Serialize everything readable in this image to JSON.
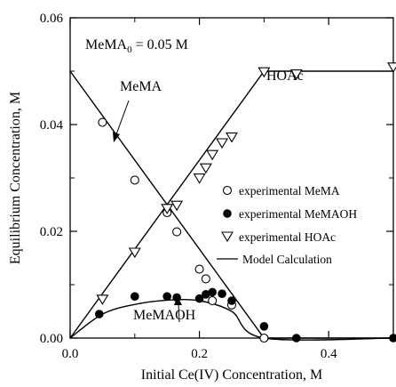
{
  "chart_data": {
    "type": "scatter",
    "title": "",
    "xlabel": "Initial Ce(IV) Concentration, M",
    "ylabel": "Equilibrium Concentration, M",
    "xlim": [
      0.0,
      0.5
    ],
    "ylim": [
      0.0,
      0.06
    ],
    "xticks": [
      "0.0",
      "0.2",
      "0.4"
    ],
    "xtick_values": [
      0.0,
      0.2,
      0.4
    ],
    "yticks": [
      "0.00",
      "0.02",
      "0.04",
      "0.06"
    ],
    "ytick_values": [
      0.0,
      0.02,
      0.04,
      0.06
    ],
    "grid": false,
    "legend_position": "right",
    "annotations": {
      "condition_prefix": "MeMA",
      "condition_subscript": "0",
      "condition_suffix": " = 0.05 M",
      "mema_label": "MeMA",
      "memaoh_label": "MeMAOH",
      "hoac_label": "HOAc"
    },
    "legend": [
      {
        "label": "experimental MeMA",
        "marker": "open-circle"
      },
      {
        "label": "experimental MeMAOH",
        "marker": "filled-circle"
      },
      {
        "label": "experimental HOAc",
        "marker": "open-triangle-down"
      },
      {
        "label": "Model Calculation",
        "marker": "line"
      }
    ],
    "series": [
      {
        "name": "experimental MeMA",
        "marker": "open-circle",
        "x": [
          0.05,
          0.1,
          0.15,
          0.165,
          0.2,
          0.21,
          0.22,
          0.25,
          0.3
        ],
        "y": [
          0.0404,
          0.0296,
          0.0235,
          0.0199,
          0.0129,
          0.0111,
          0.007,
          0.0062,
          0.0
        ]
      },
      {
        "name": "experimental MeMAOH",
        "marker": "filled-circle",
        "x": [
          0.045,
          0.1,
          0.15,
          0.165,
          0.2,
          0.21,
          0.22,
          0.235,
          0.25,
          0.3,
          0.35,
          0.5
        ],
        "y": [
          0.0045,
          0.0078,
          0.0078,
          0.0076,
          0.0074,
          0.0082,
          0.0086,
          0.0083,
          0.007,
          0.0022,
          0.0,
          0.0
        ]
      },
      {
        "name": "experimental HOAc",
        "marker": "open-triangle-down",
        "x": [
          0.05,
          0.1,
          0.15,
          0.165,
          0.2,
          0.21,
          0.22,
          0.235,
          0.25,
          0.3,
          0.35,
          0.5
        ],
        "y": [
          0.0072,
          0.016,
          0.0242,
          0.0248,
          0.0299,
          0.0318,
          0.0343,
          0.0365,
          0.0376,
          0.0498,
          0.0494,
          0.0507
        ]
      },
      {
        "name": "Model Calculation",
        "marker": "line",
        "curves": [
          {
            "x": [
              0.0,
              0.3,
              0.5
            ],
            "y": [
              0.05,
              0.0,
              0.0
            ]
          },
          {
            "x": [
              0.0,
              0.3,
              0.5
            ],
            "y": [
              0.0,
              0.05,
              0.05
            ]
          },
          {
            "x": [
              0.0,
              0.05,
              0.1,
              0.15,
              0.2,
              0.25,
              0.3,
              0.5
            ],
            "y": [
              0.0,
              0.0045,
              0.0063,
              0.0071,
              0.007,
              0.005,
              0.0,
              0.0
            ]
          }
        ]
      }
    ]
  }
}
